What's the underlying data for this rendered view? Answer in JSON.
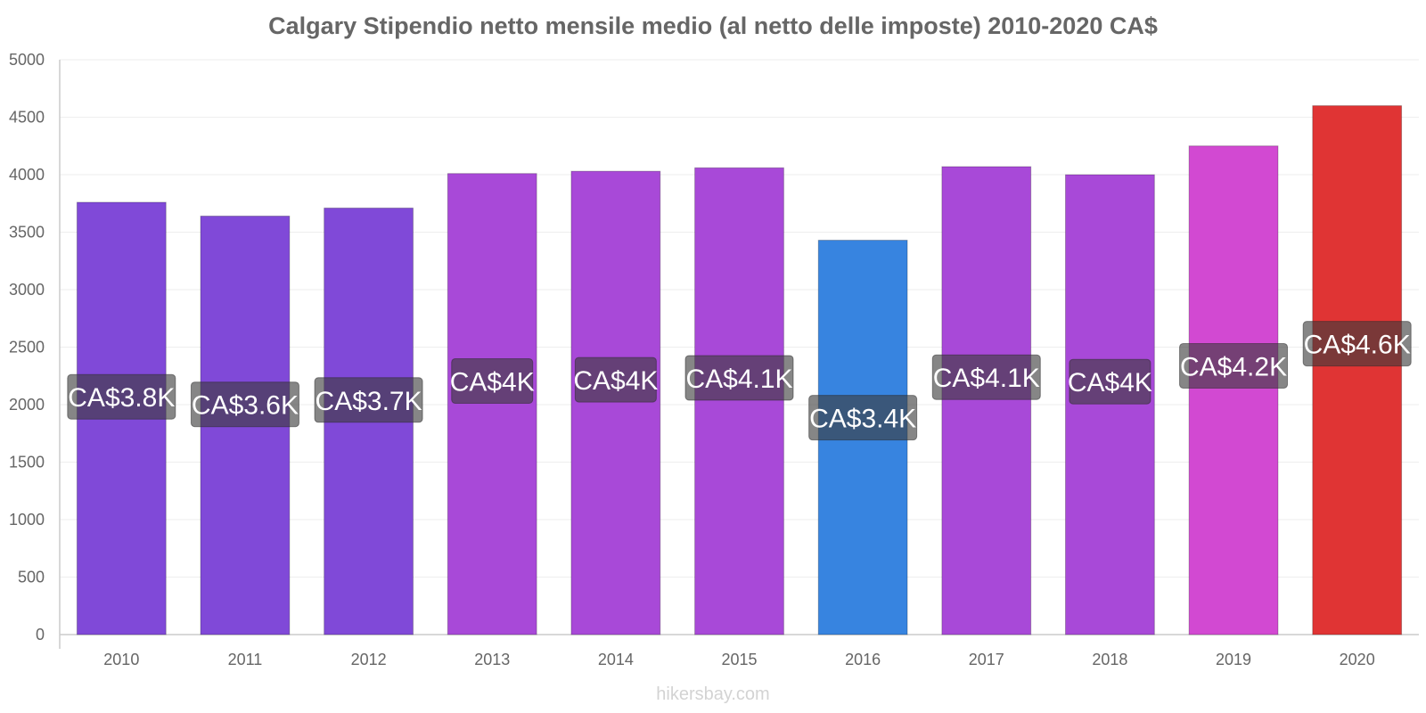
{
  "chart_data": {
    "type": "bar",
    "title": "Calgary Stipendio netto mensile medio (al netto delle imposte) 2010-2020 CA$",
    "xlabel": "",
    "ylabel": "",
    "ylim": [
      0,
      5000
    ],
    "yticks": [
      0,
      500,
      1000,
      1500,
      2000,
      2500,
      3000,
      3500,
      4000,
      4500,
      5000
    ],
    "grid": true,
    "categories": [
      "2010",
      "2011",
      "2012",
      "2013",
      "2014",
      "2015",
      "2016",
      "2017",
      "2018",
      "2019",
      "2020"
    ],
    "values": [
      3760,
      3640,
      3710,
      4010,
      4030,
      4060,
      3430,
      4070,
      4000,
      4250,
      4600
    ],
    "data_labels": [
      "CA$3.8K",
      "CA$3.6K",
      "CA$3.7K",
      "CA$4K",
      "CA$4K",
      "CA$4.1K",
      "CA$3.4K",
      "CA$4.1K",
      "CA$4K",
      "CA$4.2K",
      "CA$4.6K"
    ],
    "bar_colors": [
      "#8049d8",
      "#8049d8",
      "#8049d8",
      "#a849d8",
      "#a849d8",
      "#a849d8",
      "#3784e0",
      "#a849d8",
      "#a849d8",
      "#d249d2",
      "#e03434"
    ]
  },
  "footer": {
    "credit": "hikersbay.com"
  }
}
